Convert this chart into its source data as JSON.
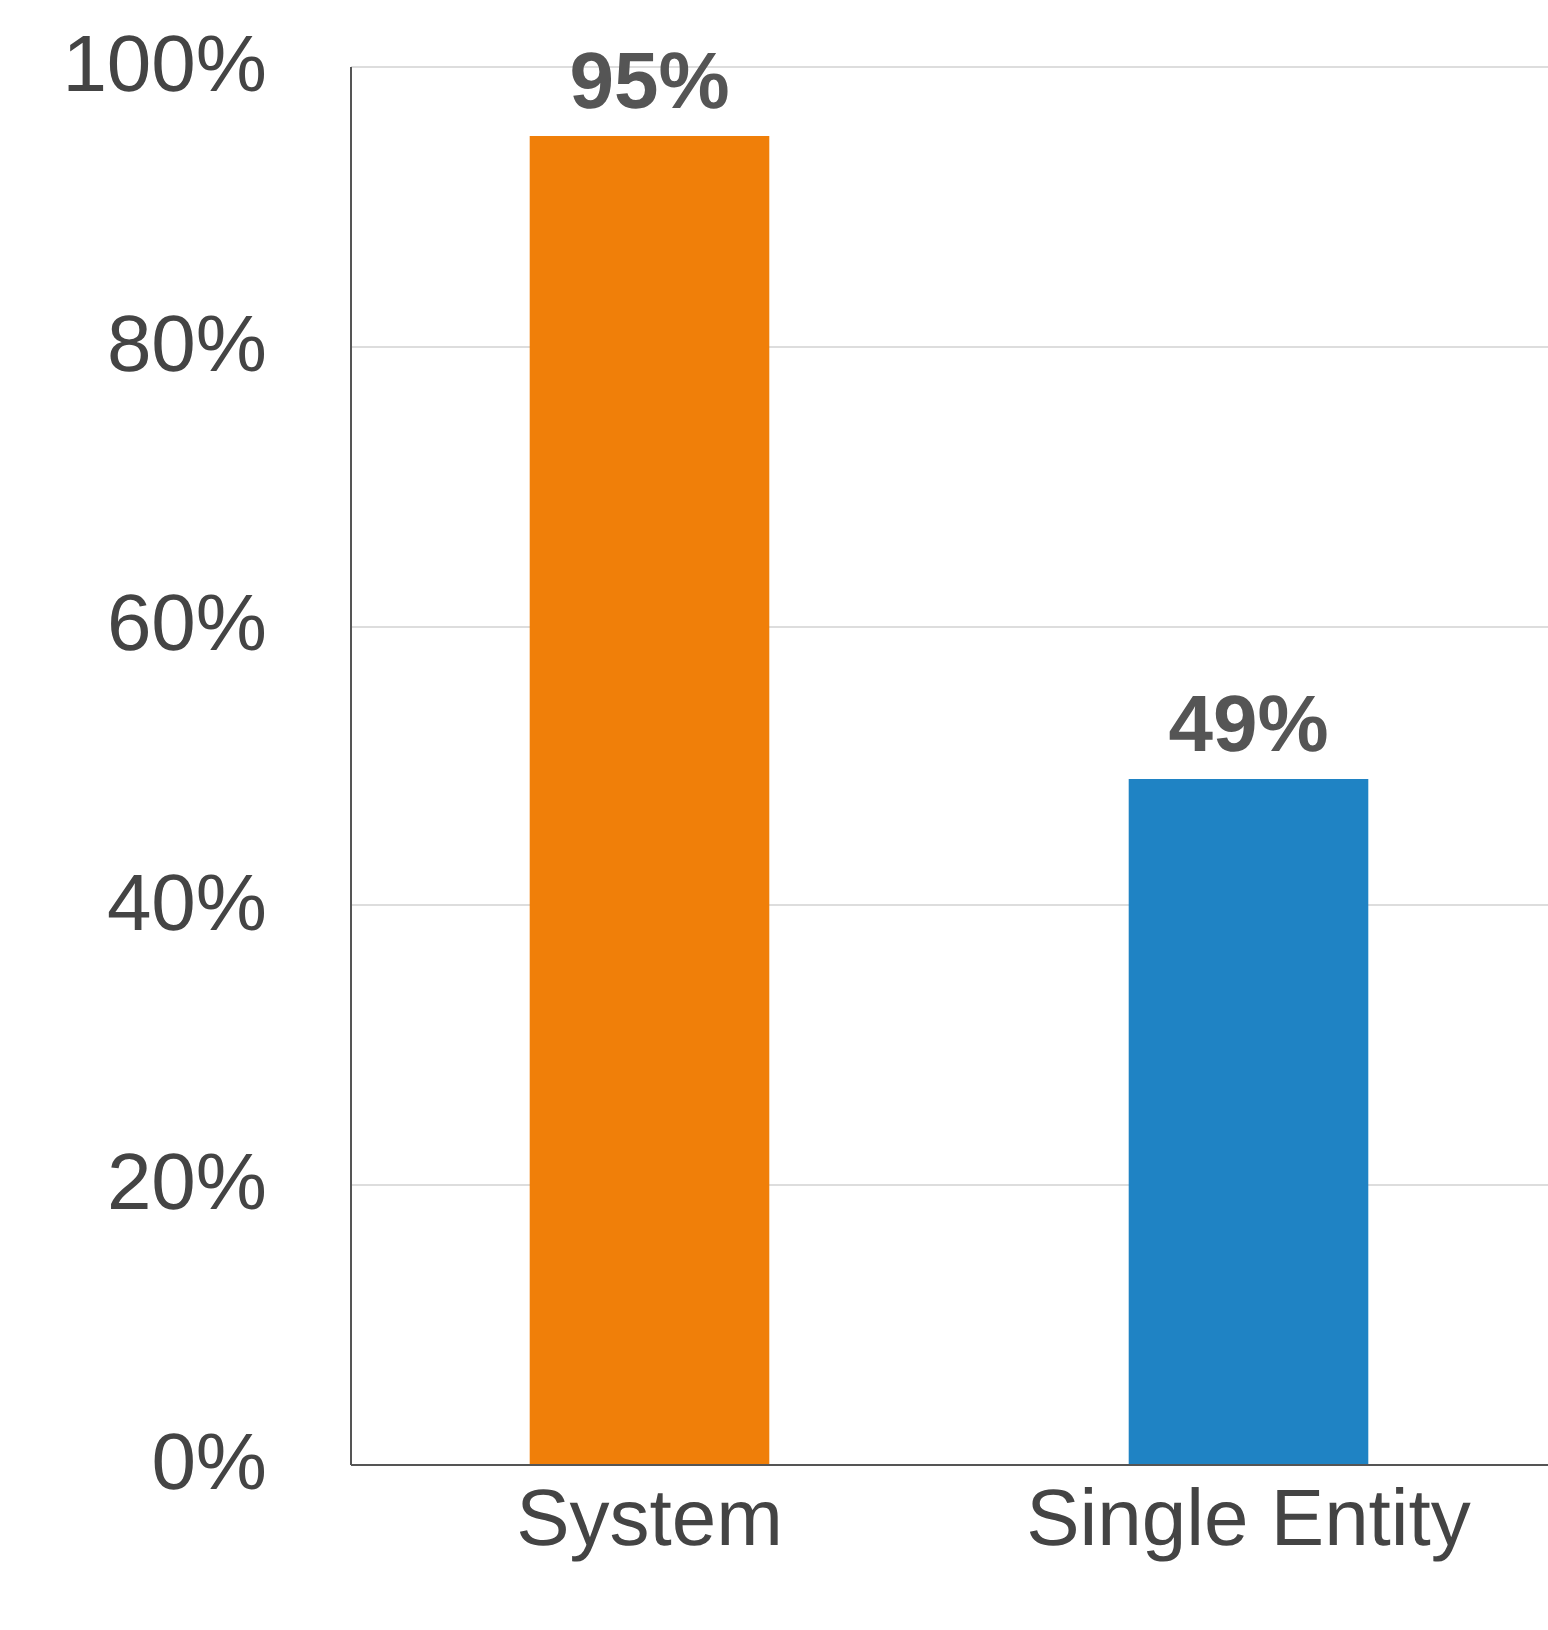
{
  "chart_data": {
    "type": "bar",
    "categories": [
      "System",
      "Single Entity"
    ],
    "values": [
      95,
      49
    ],
    "colors": [
      "#f07f09",
      "#1f83c4"
    ],
    "value_labels": [
      "95%",
      "49%"
    ],
    "ylim": [
      0,
      100
    ],
    "yticks": [
      {
        "value": 0,
        "label": "0%"
      },
      {
        "value": 20,
        "label": "20%"
      },
      {
        "value": 40,
        "label": "40%"
      },
      {
        "value": 60,
        "label": "60%"
      },
      {
        "value": 80,
        "label": "80%"
      },
      {
        "value": 100,
        "label": "100%"
      }
    ],
    "grid": "y"
  }
}
